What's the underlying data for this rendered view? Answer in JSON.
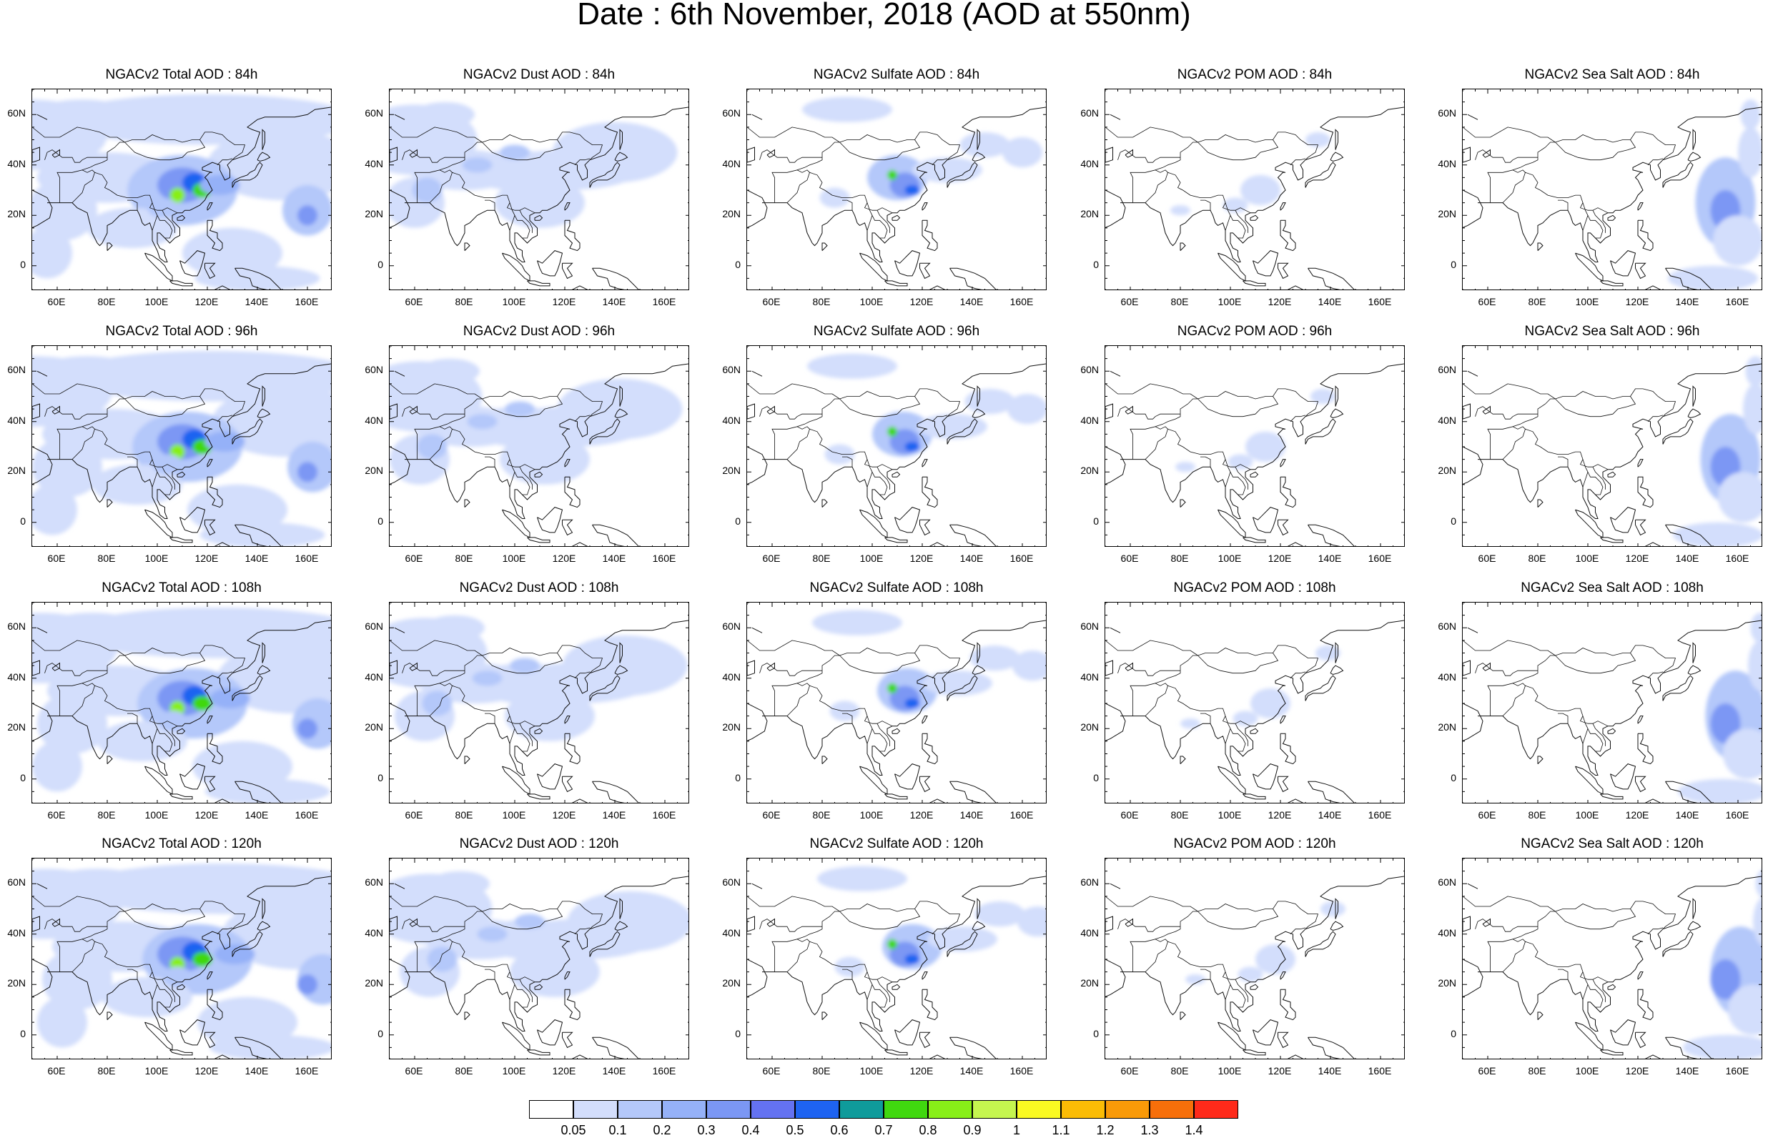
{
  "main_title": "Date : 6th November, 2018 (AOD at 550nm)",
  "panels": [
    {
      "title": "NGACv2 Total AOD : 84h",
      "species": "total",
      "row": 0,
      "col": 0
    },
    {
      "title": "NGACv2 Dust AOD : 84h",
      "species": "dust",
      "row": 0,
      "col": 1
    },
    {
      "title": "NGACv2 Sulfate AOD : 84h",
      "species": "sulfate",
      "row": 0,
      "col": 2
    },
    {
      "title": "NGACv2 POM AOD : 84h",
      "species": "pom",
      "row": 0,
      "col": 3
    },
    {
      "title": "NGACv2 Sea Salt AOD : 84h",
      "species": "seasalt",
      "row": 0,
      "col": 4
    },
    {
      "title": "NGACv2 Total AOD : 96h",
      "species": "total",
      "row": 1,
      "col": 0
    },
    {
      "title": "NGACv2 Dust AOD : 96h",
      "species": "dust",
      "row": 1,
      "col": 1
    },
    {
      "title": "NGACv2 Sulfate AOD : 96h",
      "species": "sulfate",
      "row": 1,
      "col": 2
    },
    {
      "title": "NGACv2 POM AOD : 96h",
      "species": "pom",
      "row": 1,
      "col": 3
    },
    {
      "title": "NGACv2 Sea Salt AOD : 96h",
      "species": "seasalt",
      "row": 1,
      "col": 4
    },
    {
      "title": "NGACv2 Total AOD : 108h",
      "species": "total",
      "row": 2,
      "col": 0
    },
    {
      "title": "NGACv2 Dust AOD : 108h",
      "species": "dust",
      "row": 2,
      "col": 1
    },
    {
      "title": "NGACv2 Sulfate AOD : 108h",
      "species": "sulfate",
      "row": 2,
      "col": 2
    },
    {
      "title": "NGACv2 POM AOD : 108h",
      "species": "pom",
      "row": 2,
      "col": 3
    },
    {
      "title": "NGACv2 Sea Salt AOD : 108h",
      "species": "seasalt",
      "row": 2,
      "col": 4
    },
    {
      "title": "NGACv2 Total AOD : 120h",
      "species": "total",
      "row": 3,
      "col": 0
    },
    {
      "title": "NGACv2 Dust AOD : 120h",
      "species": "dust",
      "row": 3,
      "col": 1
    },
    {
      "title": "NGACv2 Sulfate AOD : 120h",
      "species": "sulfate",
      "row": 3,
      "col": 2
    },
    {
      "title": "NGACv2 POM AOD : 120h",
      "species": "pom",
      "row": 3,
      "col": 3
    },
    {
      "title": "NGACv2 Sea Salt  AOD : 120h",
      "species": "seasalt",
      "row": 3,
      "col": 4
    }
  ],
  "axes": {
    "x_ticks": [
      "60E",
      "80E",
      "100E",
      "120E",
      "140E",
      "160E"
    ],
    "y_ticks": [
      "60N",
      "40N",
      "20N",
      "0"
    ]
  },
  "colorbar": {
    "labels": [
      "0.05",
      "0.1",
      "0.2",
      "0.3",
      "0.4",
      "0.5",
      "0.6",
      "0.7",
      "0.8",
      "0.9",
      "1",
      "1.1",
      "1.2",
      "1.3",
      "1.4"
    ],
    "colors": [
      "#ffffff",
      "#d3defc",
      "#b4c8fa",
      "#95b1f8",
      "#7b97f4",
      "#6472f1",
      "#1e63f1",
      "#0f9b9b",
      "#40d80f",
      "#88ef18",
      "#c5f54f",
      "#fafa22",
      "#fbbc05",
      "#f99a08",
      "#f76f0a",
      "#ff2a1a"
    ]
  }
}
